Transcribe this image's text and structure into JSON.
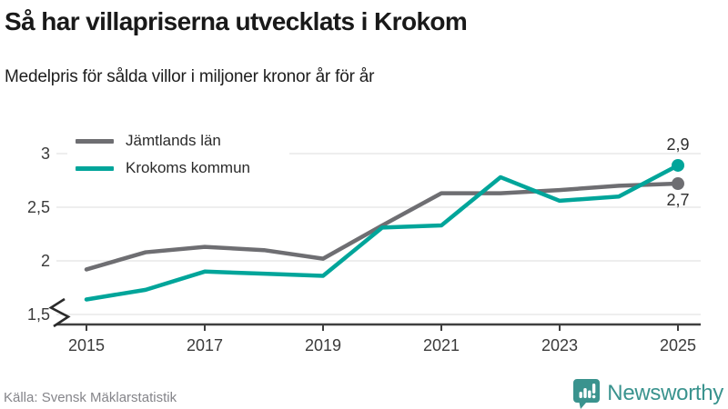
{
  "header": {
    "title": "Så har villapriserna utvecklats i Krokom",
    "subtitle": "Medelpris för sålda villor i miljoner kronor år för år"
  },
  "footer": {
    "source": "Källa: Svensk Mäklarstatistik",
    "brand_name": "Newsworthy",
    "brand_color": "#3a938e"
  },
  "colors": {
    "grid": "#e4e4e4",
    "axis": "#3f3f3f",
    "tick_text": "#3b3b3b",
    "end_label_text": "#2e2e2e",
    "legend_text": "#2b2b2b"
  },
  "chart_data": {
    "type": "line",
    "title": "Så har villapriserna utvecklats i Krokom",
    "subtitle": "Medelpris för sålda villor i miljoner kronor år för år",
    "x": [
      2015,
      2016,
      2017,
      2018,
      2019,
      2020,
      2021,
      2022,
      2023,
      2024,
      2025
    ],
    "series": [
      {
        "name": "Jämtlands län",
        "color": "#6e6e72",
        "values": [
          1.92,
          2.08,
          2.13,
          2.1,
          2.02,
          2.33,
          2.63,
          2.63,
          2.66,
          2.7,
          2.72
        ],
        "end_label": "2,7",
        "end_label_position": "below"
      },
      {
        "name": "Krokoms kommun",
        "color": "#00a59a",
        "values": [
          1.64,
          1.73,
          1.9,
          1.88,
          1.86,
          2.31,
          2.33,
          2.78,
          2.56,
          2.6,
          2.89
        ],
        "end_label": "2,9",
        "end_label_position": "above"
      }
    ],
    "y_ticks": [
      {
        "v": 3,
        "label": "3"
      },
      {
        "v": 2.5,
        "label": "2,5"
      },
      {
        "v": 2,
        "label": "2"
      },
      {
        "v": 1.5,
        "label": "1,5"
      }
    ],
    "x_ticks": [
      2015,
      2017,
      2019,
      2021,
      2023,
      2025
    ],
    "ylim": [
      1.5,
      3
    ],
    "axis_break": true,
    "grid": true,
    "legend_position": "top-left",
    "source": "Källa: Svensk Mäklarstatistik"
  }
}
